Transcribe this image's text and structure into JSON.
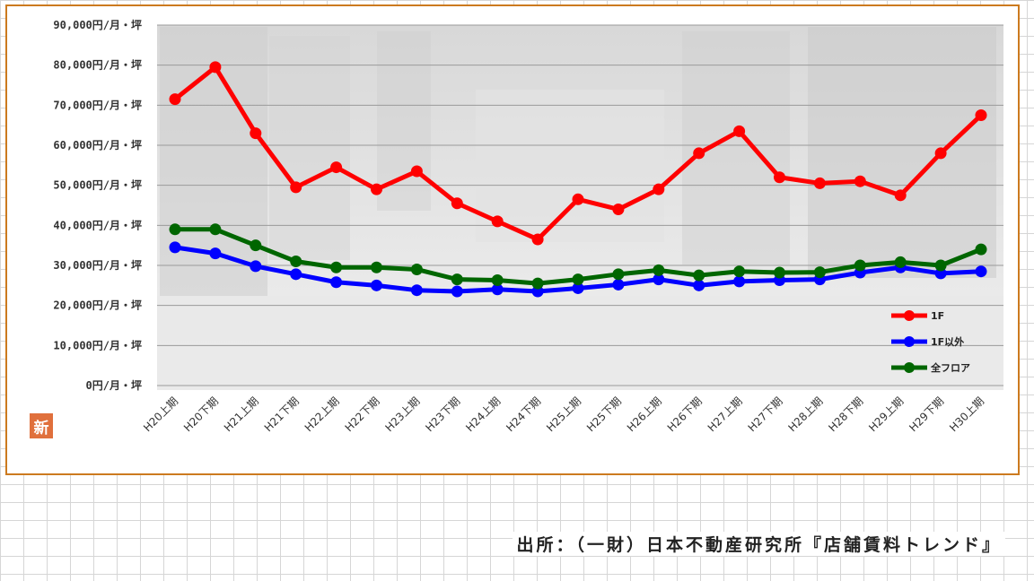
{
  "chart_data": {
    "type": "line",
    "title": "",
    "xlabel": "",
    "ylabel": "",
    "ylim": [
      0,
      90000
    ],
    "yticks": [
      {
        "value": 0,
        "label": "0円/月・坪"
      },
      {
        "value": 10000,
        "label": "10,000円/月・坪"
      },
      {
        "value": 20000,
        "label": "20,000円/月・坪"
      },
      {
        "value": 30000,
        "label": "30,000円/月・坪"
      },
      {
        "value": 40000,
        "label": "40,000円/月・坪"
      },
      {
        "value": 50000,
        "label": "50,000円/月・坪"
      },
      {
        "value": 60000,
        "label": "60,000円/月・坪"
      },
      {
        "value": 70000,
        "label": "70,000円/月・坪"
      },
      {
        "value": 80000,
        "label": "80,000円/月・坪"
      },
      {
        "value": 90000,
        "label": "90,000円/月・坪"
      }
    ],
    "grid": true,
    "legend_position": "bottom-right",
    "categories": [
      "H20上期",
      "H20下期",
      "H21上期",
      "H21下期",
      "H22上期",
      "H22下期",
      "H23上期",
      "H23下期",
      "H24上期",
      "H24下期",
      "H25上期",
      "H25下期",
      "H26上期",
      "H26下期",
      "H27上期",
      "H27下期",
      "H28上期",
      "H28下期",
      "H29上期",
      "H29下期",
      "H30上期"
    ],
    "series": [
      {
        "name": "1F",
        "color": "#ff0000",
        "values": [
          71500,
          79500,
          63000,
          49500,
          54500,
          49000,
          53500,
          45500,
          41000,
          36500,
          46500,
          44000,
          49000,
          58000,
          63500,
          52000,
          50500,
          51000,
          47500,
          58000,
          67500
        ]
      },
      {
        "name": "1F以外",
        "color": "#0000ff",
        "values": [
          34500,
          33000,
          29800,
          27800,
          25800,
          25000,
          23800,
          23500,
          24000,
          23500,
          24300,
          25200,
          26500,
          25000,
          26000,
          26300,
          26500,
          28200,
          29500,
          28000,
          28500
        ]
      },
      {
        "name": "全フロア",
        "color": "#006600",
        "values": [
          39000,
          39000,
          35000,
          31000,
          29500,
          29500,
          29000,
          26500,
          26300,
          25500,
          26500,
          27800,
          28800,
          27500,
          28500,
          28200,
          28300,
          30000,
          30800,
          30000,
          34000
        ]
      }
    ]
  },
  "source_note": "出所：（一財）日本不動産研究所『店舗賃料トレンド』",
  "logo_badge_text": "新",
  "colors": {
    "frame_border": "#cc7a1f",
    "gridline": "#9a9a9a",
    "plot_background": "#ececec"
  }
}
